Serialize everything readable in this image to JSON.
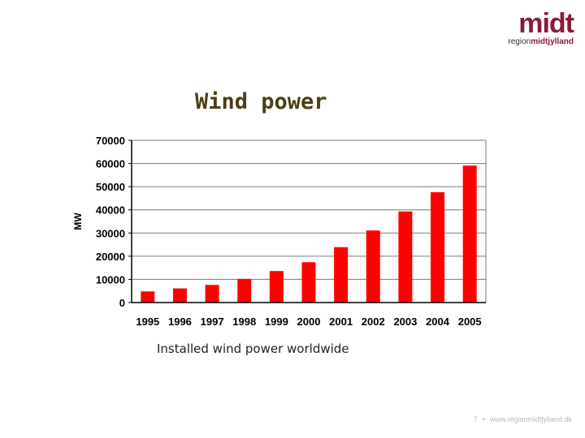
{
  "logo": {
    "word": "midt",
    "sub_prefix": "region",
    "sub_suffix": "midtjylland"
  },
  "slide": {
    "title": "Wind power",
    "caption": "Installed wind power worldwide"
  },
  "footer": {
    "page": "7",
    "separator": "•",
    "url": "www.regionmidtjylland.dk"
  },
  "colors": {
    "brand": "#8b1a3a",
    "title": "#4a3f17",
    "bar": "#ff0000",
    "grid": "#7a7a7a",
    "axis": "#000000"
  },
  "chart_data": {
    "type": "bar",
    "title": "",
    "xlabel": "",
    "ylabel": "MW",
    "categories": [
      "1995",
      "1996",
      "1997",
      "1998",
      "1999",
      "2000",
      "2001",
      "2002",
      "2003",
      "2004",
      "2005"
    ],
    "values": [
      4800,
      6100,
      7600,
      10200,
      13600,
      17400,
      23900,
      31100,
      39300,
      47600,
      59100
    ],
    "ylim": [
      0,
      70000
    ],
    "yticks": [
      "0",
      "10000",
      "20000",
      "30000",
      "40000",
      "50000",
      "60000",
      "70000"
    ],
    "grid": true,
    "legend": "none"
  }
}
